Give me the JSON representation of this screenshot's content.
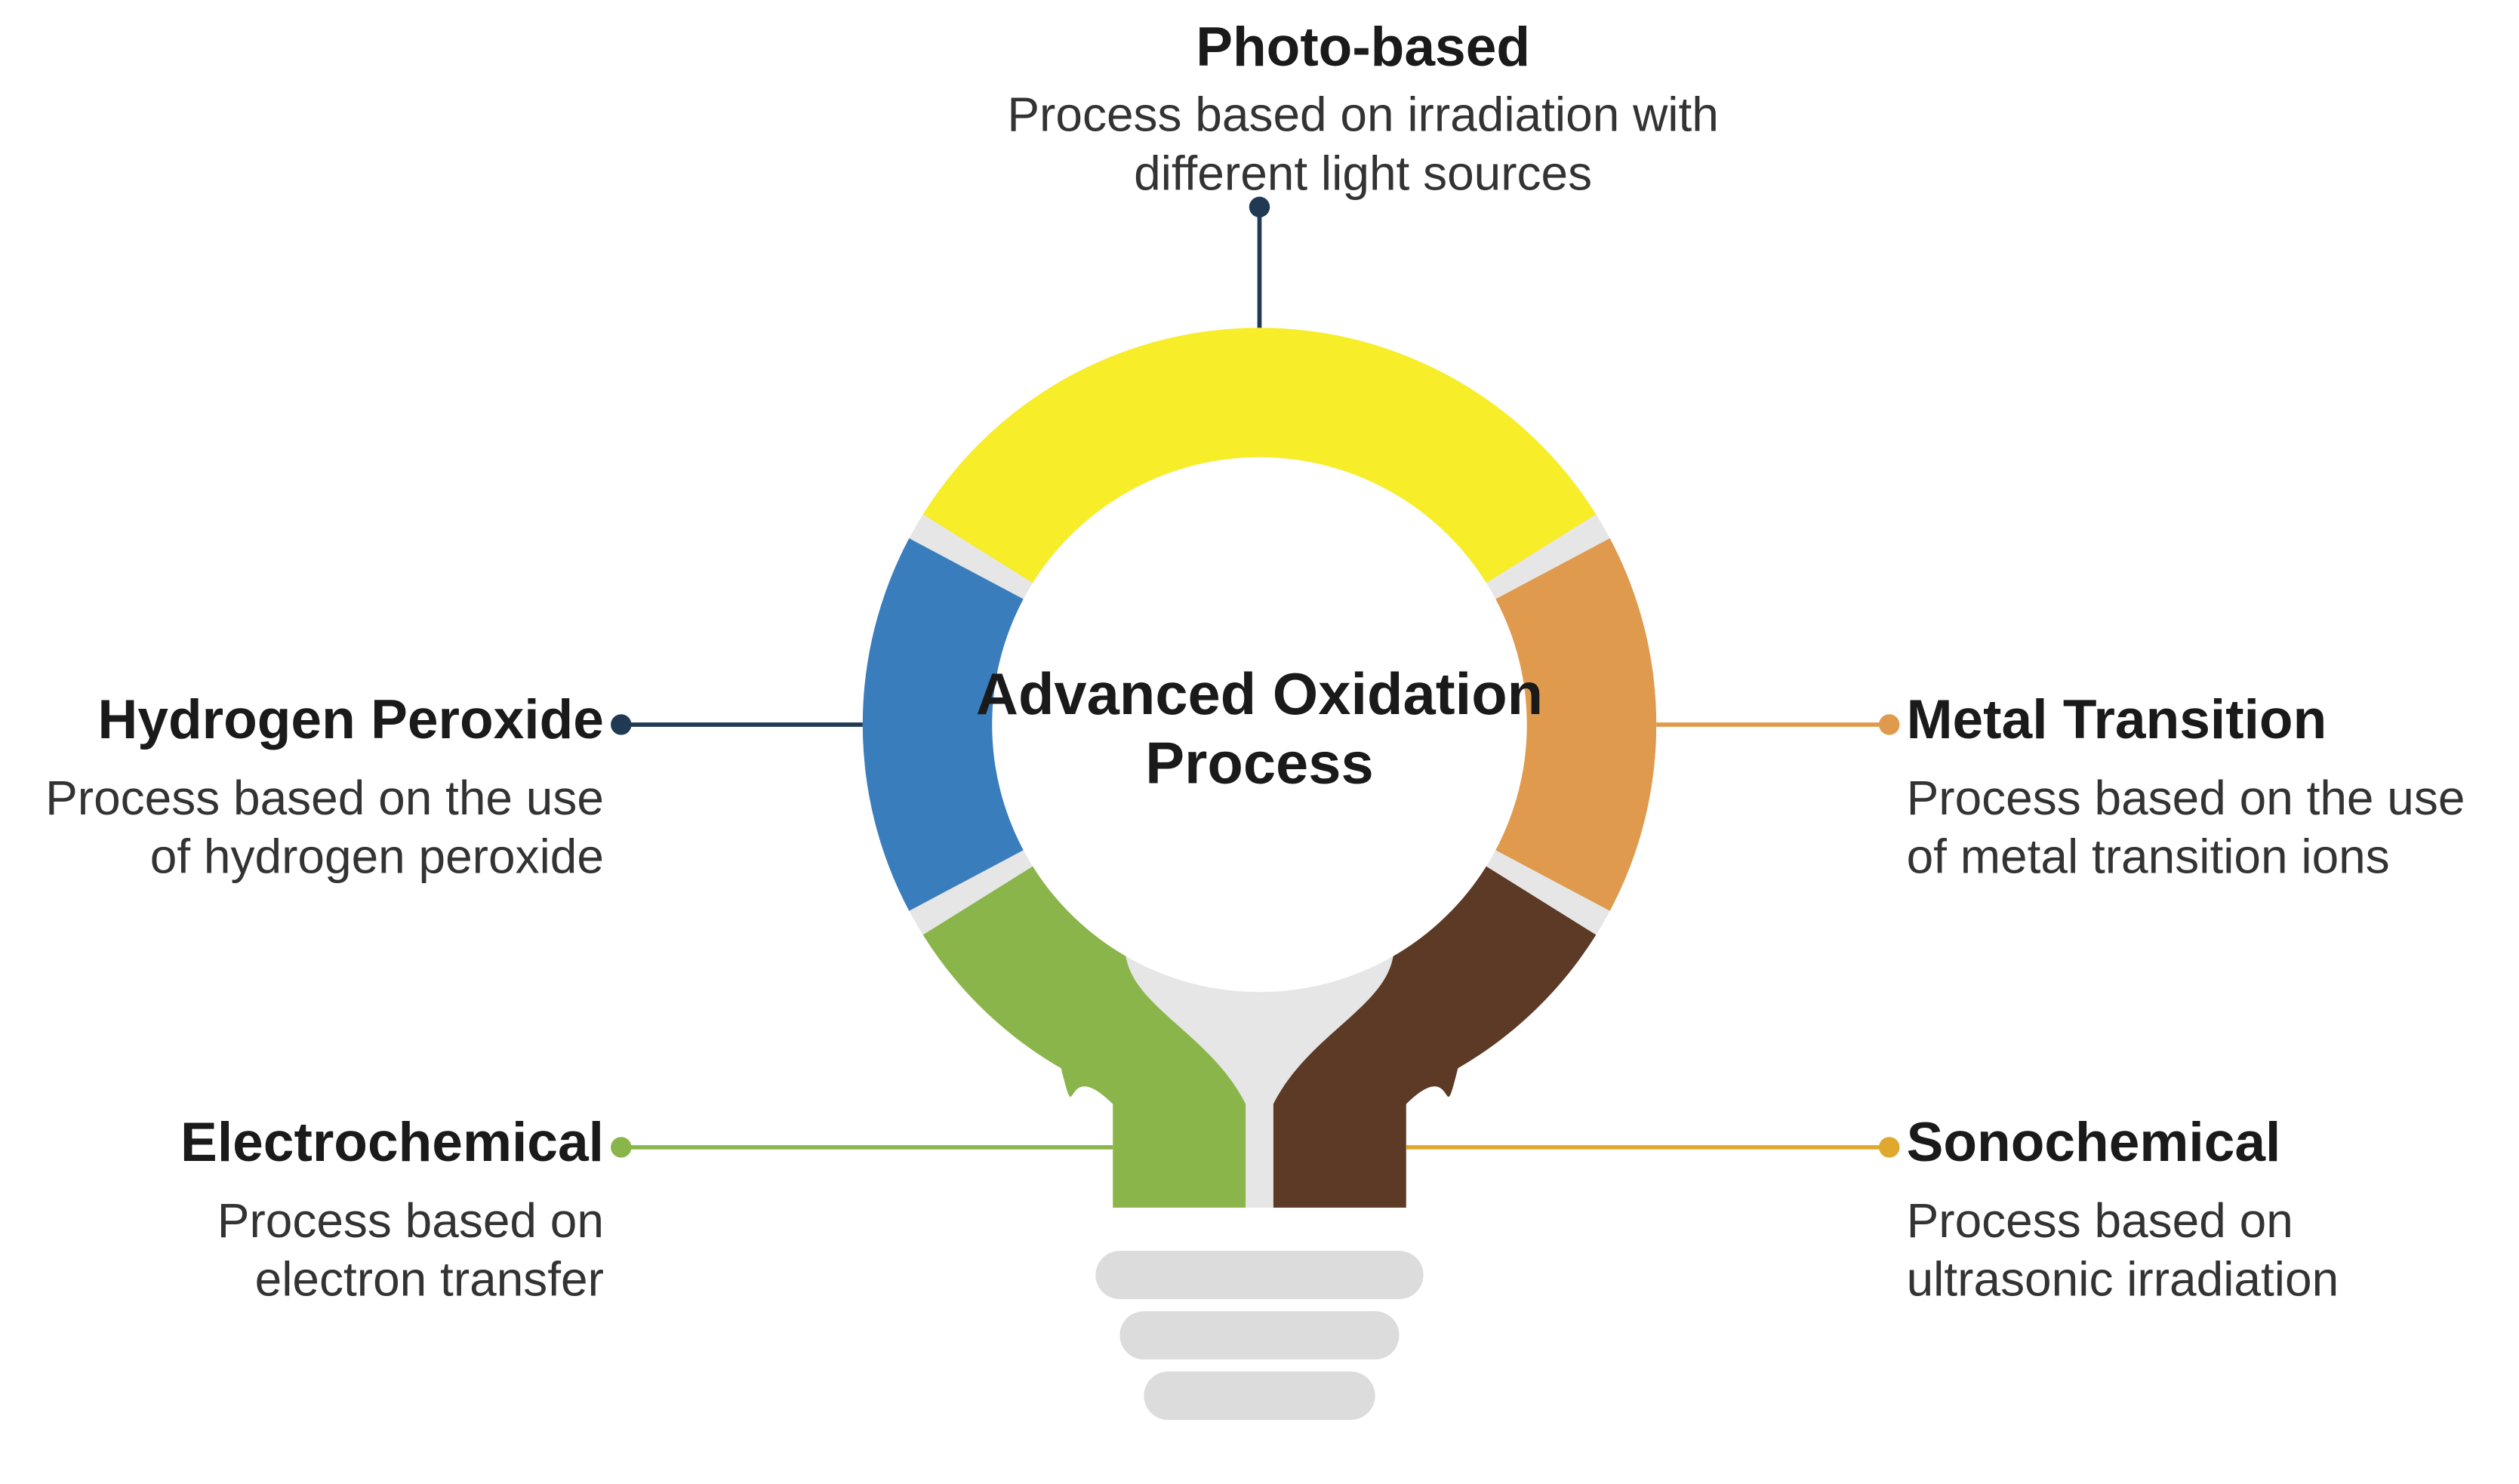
{
  "diagram": {
    "type": "infographic",
    "background_color": "#ffffff",
    "center_label_line1": "Advanced Oxidation",
    "center_label_line2": "Process",
    "center_fontsize": 34,
    "title_fontsize": 32,
    "desc_fontsize": 28,
    "gap_color": "#e6e6e6",
    "bulb_base_color": "#dcdcdc",
    "segments": [
      {
        "id": "photo",
        "title": "Photo-based",
        "desc_line1": "Process based on irradiation with",
        "desc_line2": "different light sources",
        "color": "#f7ed29",
        "leader_color": "#1f3a52",
        "dot_color": "#1f3a52"
      },
      {
        "id": "metal",
        "title": "Metal Transition",
        "desc_line1": "Process based on the use",
        "desc_line2": "of metal transition ions",
        "color": "#e09a4d",
        "leader_color": "#e09a4d",
        "dot_color": "#e09a4d"
      },
      {
        "id": "sono",
        "title": "Sonochemical",
        "desc_line1": "Process based on",
        "desc_line2": "ultrasonic irradiation",
        "color": "#5c3a25",
        "leader_color": "#e0a82e",
        "dot_color": "#e0a82e"
      },
      {
        "id": "electro",
        "title": "Electrochemical",
        "desc_line1": "Process based on",
        "desc_line2": "electron transfer",
        "color": "#8ab54a",
        "leader_color": "#8ab54a",
        "dot_color": "#8ab54a"
      },
      {
        "id": "h2o2",
        "title": "Hydrogen Peroxide",
        "desc_line1": "Process based on the use",
        "desc_line2": "of hydrogen peroxide",
        "color": "#3a7dbd",
        "leader_color": "#1f3a52",
        "dot_color": "#1f3a52"
      }
    ]
  }
}
